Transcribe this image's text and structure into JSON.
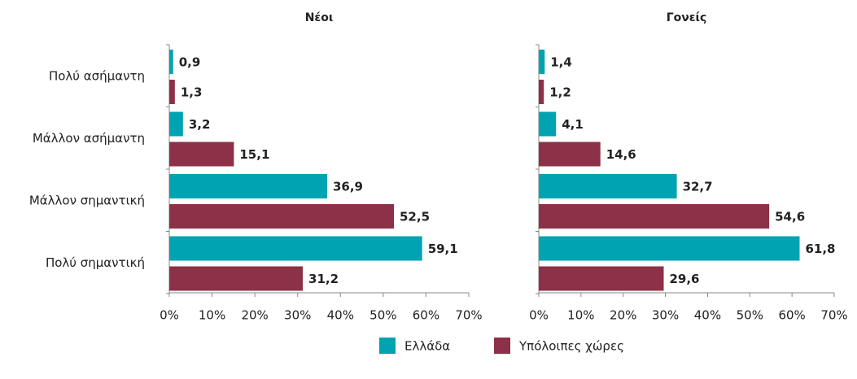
{
  "chart_data": [
    {
      "type": "bar",
      "orientation": "horizontal",
      "title": "Νέοι",
      "categories": [
        "Πολύ ασήμαντη",
        "Μάλλον ασήμαντη",
        "Μάλλον σημαντική",
        "Πολύ σημαντική"
      ],
      "series": [
        {
          "name": "Ελλάδα",
          "color": "#00a3b1",
          "values": [
            0.9,
            3.2,
            36.9,
            59.1
          ],
          "value_labels": [
            "0,9",
            "3,2",
            "36,9",
            "59,1"
          ]
        },
        {
          "name": "Υπόλοιπες χώρες",
          "color": "#8c3147",
          "values": [
            1.3,
            15.1,
            52.5,
            31.2
          ],
          "value_labels": [
            "1,3",
            "15,1",
            "52,5",
            "31,2"
          ]
        }
      ],
      "xlim": [
        0,
        70
      ],
      "xticks": [
        {
          "value": 0,
          "label": "0%"
        },
        {
          "value": 10,
          "label": "10%"
        },
        {
          "value": 20,
          "label": "20%"
        },
        {
          "value": 30,
          "label": "30%"
        },
        {
          "value": 40,
          "label": "40%"
        },
        {
          "value": 50,
          "label": "50%"
        },
        {
          "value": 60,
          "label": "60%"
        },
        {
          "value": 70,
          "label": "70%"
        }
      ]
    },
    {
      "type": "bar",
      "orientation": "horizontal",
      "title": "Γονείς",
      "categories": [
        null,
        null,
        null,
        null
      ],
      "series": [
        {
          "color": "#00a3b1",
          "values": [
            1.4,
            4.1,
            32.7,
            61.8
          ],
          "value_labels": [
            "1,4",
            "4,1",
            "32,7",
            "61,8"
          ]
        },
        {
          "color": "#8c3147",
          "values": [
            1.2,
            14.6,
            54.6,
            29.6
          ],
          "value_labels": [
            "1,2",
            "14,6",
            "54,6",
            "29,6"
          ]
        }
      ],
      "xlim": [
        0,
        70
      ],
      "xticks": [
        {
          "value": 0,
          "label": "0%"
        },
        {
          "value": 10,
          "label": "10%"
        },
        {
          "value": 20,
          "label": "20%"
        },
        {
          "value": 30,
          "label": "30%"
        },
        {
          "value": 40,
          "label": "40%"
        },
        {
          "value": 50,
          "label": "50%"
        },
        {
          "value": 60,
          "label": "60%"
        },
        {
          "value": 70,
          "label": "70%"
        }
      ]
    }
  ]
}
